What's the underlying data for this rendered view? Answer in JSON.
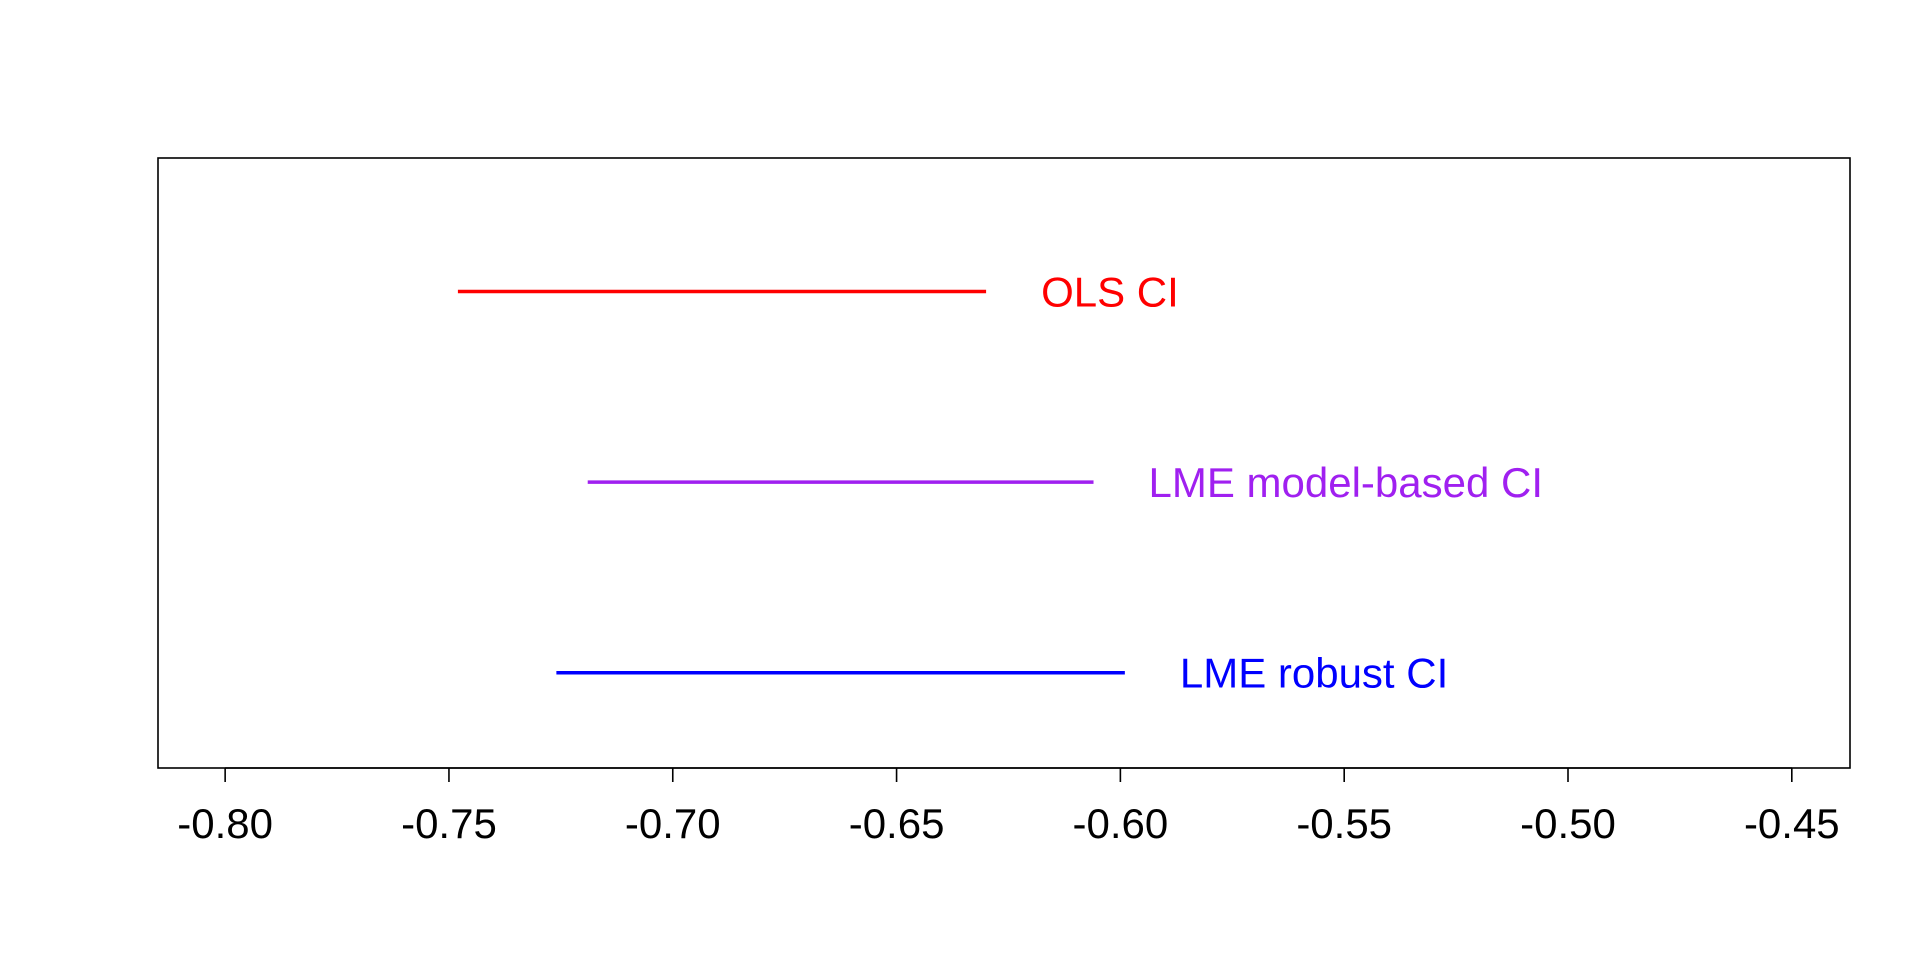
{
  "chart_data": {
    "type": "interval",
    "title": "",
    "xlabel": "",
    "ylabel": "",
    "xlim": [
      -0.815,
      -0.437
    ],
    "x_ticks": [
      -0.8,
      -0.75,
      -0.7,
      -0.65,
      -0.6,
      -0.55,
      -0.5,
      -0.45
    ],
    "x_tick_labels": [
      "-0.80",
      "-0.75",
      "-0.70",
      "-0.65",
      "-0.60",
      "-0.55",
      "-0.50",
      "-0.45"
    ],
    "grid": false,
    "series": [
      {
        "name": "OLS CI",
        "lower": -0.748,
        "upper": -0.63,
        "level": 3,
        "color": "#ff0000"
      },
      {
        "name": "LME model-based CI",
        "lower": -0.719,
        "upper": -0.606,
        "level": 2,
        "color": "#a020f0"
      },
      {
        "name": "LME robust CI",
        "lower": -0.726,
        "upper": -0.599,
        "level": 1,
        "color": "#0000ff"
      }
    ]
  }
}
